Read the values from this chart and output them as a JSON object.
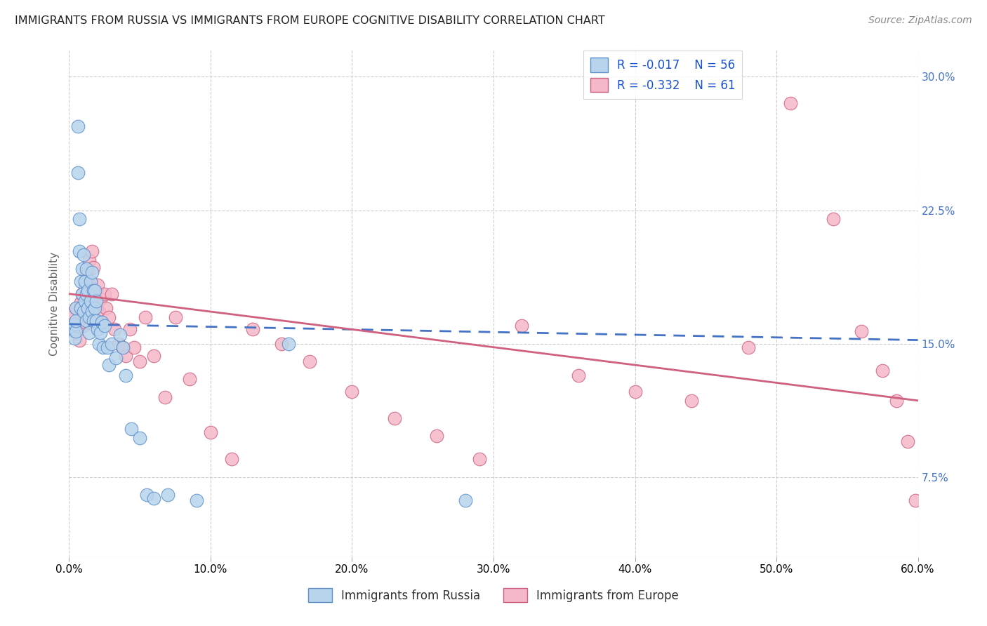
{
  "title": "IMMIGRANTS FROM RUSSIA VS IMMIGRANTS FROM EUROPE COGNITIVE DISABILITY CORRELATION CHART",
  "source": "Source: ZipAtlas.com",
  "ylabel": "Cognitive Disability",
  "xlim": [
    0.0,
    0.6
  ],
  "ylim": [
    0.03,
    0.315
  ],
  "xtick_vals": [
    0.0,
    0.1,
    0.2,
    0.3,
    0.4,
    0.5,
    0.6
  ],
  "ytick_vals": [
    0.075,
    0.15,
    0.225,
    0.3
  ],
  "color_russia_fill": "#b8d4ec",
  "color_russia_edge": "#5b8fcc",
  "color_russia_line": "#4472c4",
  "color_europe_fill": "#f5b8c8",
  "color_europe_edge": "#cc6080",
  "color_europe_line": "#d06080",
  "legend_text_color": "#1a50cc",
  "legend_R1": "-0.017",
  "legend_N1": "56",
  "legend_R2": "-0.332",
  "legend_N2": "61",
  "russia_line_x0": 0.0,
  "russia_line_y0": 0.161,
  "russia_line_x1": 0.6,
  "russia_line_y1": 0.152,
  "europe_line_x0": 0.0,
  "europe_line_y0": 0.178,
  "europe_line_x1": 0.6,
  "europe_line_y1": 0.118,
  "russia_x": [
    0.003,
    0.004,
    0.004,
    0.005,
    0.005,
    0.005,
    0.006,
    0.006,
    0.007,
    0.007,
    0.008,
    0.008,
    0.009,
    0.009,
    0.01,
    0.01,
    0.011,
    0.011,
    0.012,
    0.012,
    0.012,
    0.013,
    0.013,
    0.014,
    0.014,
    0.015,
    0.015,
    0.016,
    0.016,
    0.017,
    0.017,
    0.018,
    0.018,
    0.019,
    0.019,
    0.02,
    0.021,
    0.022,
    0.023,
    0.024,
    0.025,
    0.027,
    0.028,
    0.03,
    0.033,
    0.036,
    0.038,
    0.04,
    0.044,
    0.05,
    0.055,
    0.06,
    0.07,
    0.09,
    0.155,
    0.28
  ],
  "russia_y": [
    0.158,
    0.153,
    0.161,
    0.157,
    0.163,
    0.17,
    0.272,
    0.246,
    0.22,
    0.202,
    0.185,
    0.17,
    0.192,
    0.178,
    0.2,
    0.168,
    0.185,
    0.174,
    0.163,
    0.178,
    0.192,
    0.17,
    0.18,
    0.165,
    0.156,
    0.185,
    0.174,
    0.19,
    0.168,
    0.18,
    0.163,
    0.18,
    0.17,
    0.163,
    0.174,
    0.158,
    0.15,
    0.156,
    0.162,
    0.148,
    0.16,
    0.148,
    0.138,
    0.15,
    0.142,
    0.155,
    0.148,
    0.132,
    0.102,
    0.097,
    0.065,
    0.063,
    0.065,
    0.062,
    0.15,
    0.062
  ],
  "europe_x": [
    0.003,
    0.004,
    0.005,
    0.006,
    0.007,
    0.008,
    0.009,
    0.01,
    0.01,
    0.011,
    0.011,
    0.012,
    0.013,
    0.014,
    0.015,
    0.015,
    0.016,
    0.017,
    0.018,
    0.019,
    0.02,
    0.021,
    0.022,
    0.023,
    0.025,
    0.026,
    0.028,
    0.03,
    0.032,
    0.035,
    0.038,
    0.04,
    0.043,
    0.046,
    0.05,
    0.054,
    0.06,
    0.068,
    0.075,
    0.085,
    0.1,
    0.115,
    0.13,
    0.15,
    0.17,
    0.2,
    0.23,
    0.26,
    0.29,
    0.32,
    0.36,
    0.4,
    0.44,
    0.48,
    0.51,
    0.54,
    0.56,
    0.575,
    0.585,
    0.593,
    0.598
  ],
  "europe_y": [
    0.167,
    0.157,
    0.17,
    0.16,
    0.152,
    0.173,
    0.178,
    0.16,
    0.17,
    0.162,
    0.183,
    0.19,
    0.178,
    0.197,
    0.17,
    0.185,
    0.202,
    0.193,
    0.178,
    0.173,
    0.183,
    0.168,
    0.175,
    0.162,
    0.178,
    0.17,
    0.165,
    0.178,
    0.158,
    0.15,
    0.148,
    0.143,
    0.158,
    0.148,
    0.14,
    0.165,
    0.143,
    0.12,
    0.165,
    0.13,
    0.1,
    0.085,
    0.158,
    0.15,
    0.14,
    0.123,
    0.108,
    0.098,
    0.085,
    0.16,
    0.132,
    0.123,
    0.118,
    0.148,
    0.285,
    0.22,
    0.157,
    0.135,
    0.118,
    0.095,
    0.062
  ]
}
